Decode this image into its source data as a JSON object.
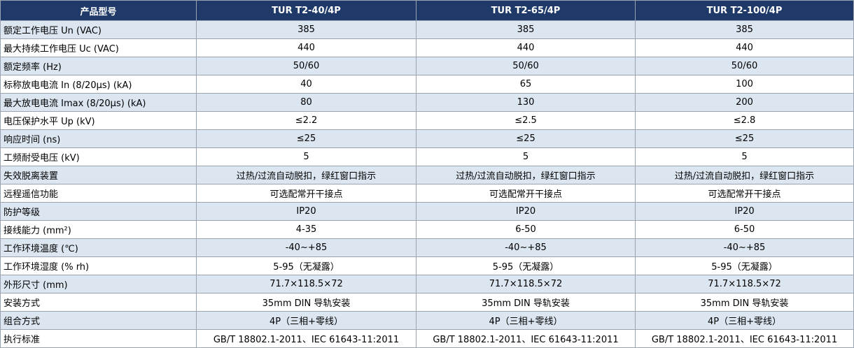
{
  "table": {
    "header": [
      "产品型号",
      "TUR T2-40/4P",
      "TUR T2-65/4P",
      "TUR T2-100/4P"
    ],
    "rows": [
      [
        "额定工作电压 Un (VAC)",
        "385",
        "385",
        "385"
      ],
      [
        "最大持续工作电压 Uc (VAC)",
        "440",
        "440",
        "440"
      ],
      [
        "额定频率 (Hz)",
        "50/60",
        "50/60",
        "50/60"
      ],
      [
        "标称放电电流 In (8/20μs) (kA)",
        "40",
        "65",
        "100"
      ],
      [
        "最大放电电流 Imax (8/20μs) (kA)",
        "80",
        "130",
        "200"
      ],
      [
        "电压保护水平 Up (kV)",
        "≤2.2",
        "≤2.5",
        "≤2.8"
      ],
      [
        "响应时间 (ns)",
        "≤25",
        "≤25",
        "≤25"
      ],
      [
        "工频耐受电压 (kV)",
        "5",
        "5",
        "5"
      ],
      [
        "失效脱离装置",
        "过热/过流自动脱扣，绿红窗口指示",
        "过热/过流自动脱扣，绿红窗口指示",
        "过热/过流自动脱扣，绿红窗口指示"
      ],
      [
        "远程遥信功能",
        "可选配常开干接点",
        "可选配常开干接点",
        "可选配常开干接点"
      ],
      [
        "防护等级",
        "IP20",
        "IP20",
        "IP20"
      ],
      [
        "接线能力 (mm²)",
        "4-35",
        "6-50",
        "6-50"
      ],
      [
        "工作环境温度 (℃)",
        "-40~+85",
        "-40~+85",
        "-40~+85"
      ],
      [
        "工作环境湿度 (% rh)",
        "5-95（无凝露）",
        "5-95（无凝露）",
        "5-95（无凝露）"
      ],
      [
        "外形尺寸 (mm)",
        "71.7×118.5×72",
        "71.7×118.5×72",
        "71.7×118.5×72"
      ],
      [
        "安装方式",
        "35mm DIN 导轨安装",
        "35mm DIN 导轨安装",
        "35mm DIN 导轨安装"
      ],
      [
        "组合方式",
        "4P（三相+零线）",
        "4P（三相+零线）",
        "4P（三相+零线）"
      ],
      [
        "执行标准",
        "GB/T 18802.1-2011、IEC 61643-11:2011",
        "GB/T 18802.1-2011、IEC 61643-11:2011",
        "GB/T 18802.1-2011、IEC 61643-11:2011"
      ]
    ]
  }
}
